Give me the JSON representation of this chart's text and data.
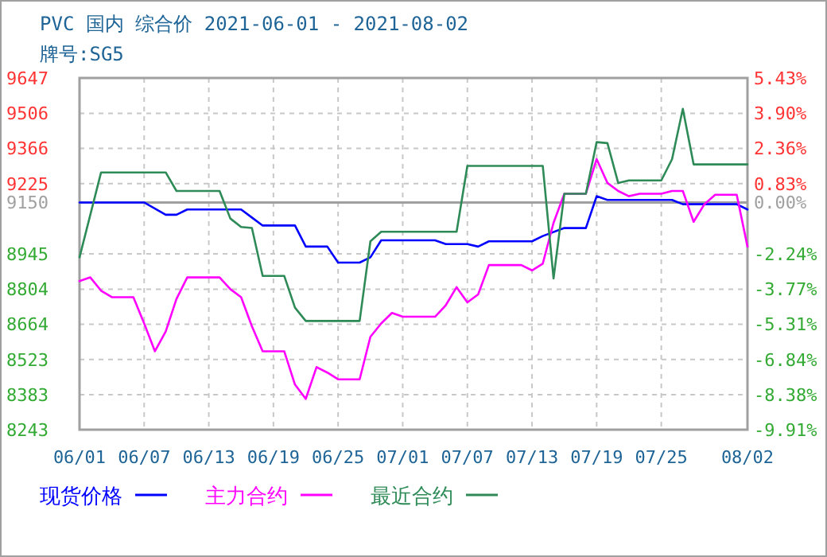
{
  "chart_data": {
    "type": "line",
    "title": "PVC 国内 综合价 2021-06-01 - 2021-08-02",
    "subtitle": "牌号:SG5",
    "xlim": [
      "--06-01",
      "--08-02"
    ],
    "xticks": [
      {
        "value": "--06-01",
        "label": "06/01"
      },
      {
        "value": "--06-07",
        "label": "06/07"
      },
      {
        "value": "--06-13",
        "label": "06/13"
      },
      {
        "value": "--06-19",
        "label": "06/19"
      },
      {
        "value": "--06-25",
        "label": "06/25"
      },
      {
        "value": "--07-01",
        "label": "07/01"
      },
      {
        "value": "--07-07",
        "label": "07/07"
      },
      {
        "value": "--07-13",
        "label": "07/13"
      },
      {
        "value": "--07-19",
        "label": "07/19"
      },
      {
        "value": "--07-25",
        "label": "07/25"
      },
      {
        "value": "--08-02",
        "label": "08/02"
      }
    ],
    "ylim": [
      8243,
      9647
    ],
    "yticks": [
      8243,
      8383,
      8523,
      8664,
      8804,
      8945,
      9150,
      9225,
      9366,
      9506,
      9647
    ],
    "y2lim": [
      -9.91,
      5.43
    ],
    "y2ticks": [
      {
        "value": -9.91,
        "label": "-9.91%"
      },
      {
        "value": -8.38,
        "label": "-8.38%"
      },
      {
        "value": -6.84,
        "label": "-6.84%"
      },
      {
        "value": -5.31,
        "label": "-5.31%"
      },
      {
        "value": -3.77,
        "label": "-3.77%"
      },
      {
        "value": -2.24,
        "label": "-2.24%"
      },
      {
        "value": 0,
        "label": "0.00%"
      },
      {
        "value": 0.83,
        "label": "0.83%"
      },
      {
        "value": 2.36,
        "label": "2.36%"
      },
      {
        "value": 3.9,
        "label": "3.90%"
      },
      {
        "value": 5.43,
        "label": "5.43%"
      }
    ],
    "ref_lines": [
      {
        "axis": "y",
        "value": 9150,
        "color": "#a0a0a0"
      }
    ],
    "grid": true,
    "legend": "bottom",
    "line_style": "solid",
    "series": [
      {
        "name": "现货价格",
        "color": "#0000ff",
        "x": [
          "--06-01",
          "--06-07",
          "--06-09",
          "--06-10",
          "--06-11",
          "--06-16",
          "--06-17",
          "--06-18",
          "--06-21",
          "--06-22",
          "--06-24",
          "--06-25",
          "--06-27",
          "--06-28",
          "--06-29",
          "--07-04",
          "--07-05",
          "--07-07",
          "--07-08",
          "--07-09",
          "--07-13",
          "--07-14",
          "--07-16",
          "--07-18",
          "--07-19",
          "--07-20",
          "--07-26",
          "--07-27",
          "--08-01",
          "--08-02"
        ],
        "values": [
          9150,
          9150,
          9101,
          9101,
          9122,
          9122,
          9090,
          9058,
          9058,
          8974,
          8974,
          8910,
          8910,
          8931,
          8999,
          8999,
          8984,
          8984,
          8974,
          8995,
          8995,
          9016,
          9048,
          9048,
          9175,
          9160,
          9160,
          9143,
          9143,
          9122
        ]
      },
      {
        "name": "主力合约",
        "color": "#ff00ff",
        "x": [
          "--06-01",
          "--06-02",
          "--06-03",
          "--06-04",
          "--06-06",
          "--06-07",
          "--06-08",
          "--06-09",
          "--06-10",
          "--06-11",
          "--06-14",
          "--06-15",
          "--06-16",
          "--06-17",
          "--06-18",
          "--06-20",
          "--06-21",
          "--06-22",
          "--06-23",
          "--06-24",
          "--06-25",
          "--06-27",
          "--06-28",
          "--06-29",
          "--06-30",
          "--07-01",
          "--07-04",
          "--07-05",
          "--07-06",
          "--07-07",
          "--07-08",
          "--07-09",
          "--07-12",
          "--07-13",
          "--07-14",
          "--07-15",
          "--07-16",
          "--07-18",
          "--07-19",
          "--07-20",
          "--07-21",
          "--07-22",
          "--07-23",
          "--07-25",
          "--07-26",
          "--07-27",
          "--07-28",
          "--07-29",
          "--07-30",
          "--08-01",
          "--08-02"
        ],
        "values": [
          8836,
          8851,
          8798,
          8772,
          8772,
          8667,
          8556,
          8635,
          8765,
          8851,
          8851,
          8804,
          8772,
          8656,
          8556,
          8556,
          8423,
          8366,
          8493,
          8471,
          8444,
          8444,
          8614,
          8667,
          8709,
          8694,
          8694,
          8740,
          8812,
          8751,
          8783,
          8900,
          8900,
          8879,
          8906,
          9069,
          9185,
          9185,
          9323,
          9228,
          9196,
          9175,
          9185,
          9185,
          9196,
          9196,
          9073,
          9143,
          9181,
          9181,
          8974
        ]
      },
      {
        "name": "最近合约",
        "color": "#2e8b57",
        "x": [
          "--06-01",
          "--06-03",
          "--06-09",
          "--06-10",
          "--06-14",
          "--06-15",
          "--06-16",
          "--06-17",
          "--06-18",
          "--06-20",
          "--06-21",
          "--06-22",
          "--06-27",
          "--06-28",
          "--06-29",
          "--07-06",
          "--07-07",
          "--07-14",
          "--07-15",
          "--07-16",
          "--07-18",
          "--07-19",
          "--07-20",
          "--07-21",
          "--07-22",
          "--07-25",
          "--07-26",
          "--07-27",
          "--07-28",
          "--08-02"
        ],
        "values": [
          8931,
          9270,
          9270,
          9196,
          9196,
          9086,
          9052,
          9048,
          8857,
          8857,
          8730,
          8677,
          8677,
          8995,
          9033,
          9033,
          9296,
          9296,
          8847,
          9185,
          9185,
          9391,
          9387,
          9228,
          9238,
          9238,
          9323,
          9524,
          9302,
          9302
        ]
      }
    ]
  }
}
